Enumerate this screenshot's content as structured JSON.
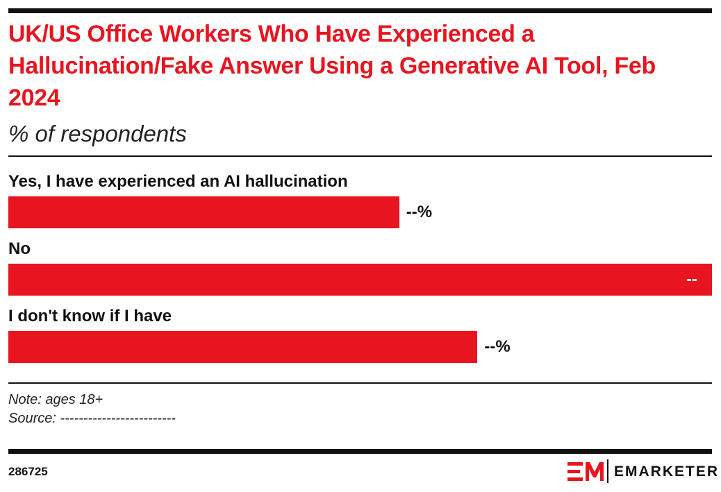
{
  "chart_data": {
    "type": "bar",
    "title": "UK/US Office Workers Who Have Experienced a Hallucination/Fake Answer Using a Generative AI Tool, Feb 2024",
    "subtitle": "% of respondents",
    "categories": [
      "Yes, I have experienced an AI hallucination",
      "No",
      "I don't know if I have"
    ],
    "values": [
      25,
      45,
      30
    ],
    "value_labels": [
      "--%",
      "--%",
      "--%"
    ],
    "color": "#e8141f",
    "note": "Note: ages 18+",
    "source": "Source: -------------------------"
  },
  "footer": {
    "id": "286725",
    "brand": "EMARKETER"
  }
}
